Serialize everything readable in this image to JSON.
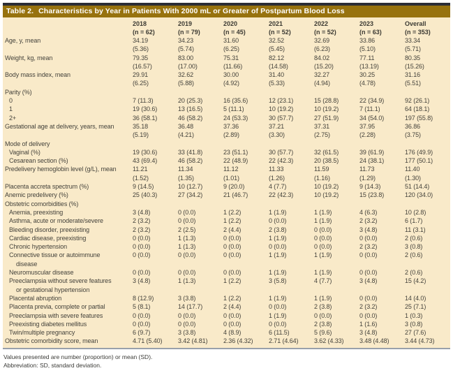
{
  "table": {
    "title_prefix": "Table 2.",
    "title_rest": "Characteristics by Year in Patients With 2000 mL or Greater of Postpartum Blood Loss",
    "columns": [
      {
        "year": "2018",
        "n": "(n = 62)"
      },
      {
        "year": "2019",
        "n": "(n = 79)"
      },
      {
        "year": "2020",
        "n": "(n = 45)"
      },
      {
        "year": "2021",
        "n": "(n = 52)"
      },
      {
        "year": "2022",
        "n": "(n = 52)"
      },
      {
        "year": "2023",
        "n": "(n = 63)"
      },
      {
        "year": "Overall",
        "n": "(n = 353)"
      }
    ],
    "rows": [
      {
        "label": "Age, y, mean",
        "indent": 0,
        "values": [
          [
            "34.19",
            "(5.36)"
          ],
          [
            "34.23",
            "(5.74)"
          ],
          [
            "31.60",
            "(6.25)"
          ],
          [
            "32.52",
            "(5.45)"
          ],
          [
            "32.69",
            "(6.23)"
          ],
          [
            "33.86",
            "(5.10)"
          ],
          [
            "33.34",
            "(5.71)"
          ]
        ]
      },
      {
        "label": "Weight, kg, mean",
        "indent": 0,
        "values": [
          [
            "79.35",
            "(16.57)"
          ],
          [
            "83.00",
            "(17.00)"
          ],
          [
            "75.31",
            "(11.66)"
          ],
          [
            "82.12",
            "(14.58)"
          ],
          [
            "84.02",
            "(15.20)"
          ],
          [
            "77.11",
            "(13.19)"
          ],
          [
            "80.35",
            "(15.26)"
          ]
        ]
      },
      {
        "label": "Body mass index, mean",
        "indent": 0,
        "values": [
          [
            "29.91",
            "(6.25)"
          ],
          [
            "32.62",
            "(5.88)"
          ],
          [
            "30.00",
            "(4.92)"
          ],
          [
            "31.40",
            "(5.33)"
          ],
          [
            "32.27",
            "(4.94)"
          ],
          [
            "30.25",
            "(4.78)"
          ],
          [
            "31.16",
            "(5.51)"
          ]
        ]
      },
      {
        "label": "Parity (%)",
        "indent": 0,
        "values": []
      },
      {
        "label": "0",
        "indent": 1,
        "values": [
          "7 (11.3)",
          "20 (25.3)",
          "16 (35.6)",
          "12 (23.1)",
          "15 (28.8)",
          "22 (34.9)",
          "92 (26.1)"
        ]
      },
      {
        "label": "1",
        "indent": 1,
        "values": [
          "19 (30.6)",
          "13 (16.5)",
          "5 (11.1)",
          "10 (19.2)",
          "10 (19.2)",
          "7 (11.1)",
          "64 (18.1)"
        ]
      },
      {
        "label": "2+",
        "indent": 1,
        "values": [
          "36 (58.1)",
          "46 (58.2)",
          "24 (53.3)",
          "30 (57.7)",
          "27 (51.9)",
          "34 (54.0)",
          "197 (55.8)"
        ]
      },
      {
        "label": "Gestational age at delivery, years, mean",
        "indent": 0,
        "values": [
          [
            "35.18",
            "(5.19)"
          ],
          [
            "36.48",
            "(4.21)"
          ],
          [
            "37.36",
            "(2.89)"
          ],
          [
            "37.21",
            "(3.30)"
          ],
          [
            "37.31",
            "(2.75)"
          ],
          [
            "37.95",
            "(2.28)"
          ],
          [
            "36.86",
            "(3.75)"
          ]
        ]
      },
      {
        "label": "Mode of delivery",
        "indent": 0,
        "values": []
      },
      {
        "label": "Vaginal (%)",
        "indent": 1,
        "values": [
          "19 (30.6)",
          "33 (41.8)",
          "23 (51.1)",
          "30 (57.7)",
          "32 (61.5)",
          "39 (61.9)",
          "176 (49.9)"
        ]
      },
      {
        "label": "Cesarean section (%)",
        "indent": 1,
        "values": [
          "43 (69.4)",
          "46 (58.2)",
          "22 (48.9)",
          "22 (42.3)",
          "20 (38.5)",
          "24 (38.1)",
          "177 (50.1)"
        ]
      },
      {
        "label": "Predelivery hemoglobin level (g/L), mean",
        "indent": 0,
        "values": [
          [
            "11.21",
            "(1.52)"
          ],
          [
            "11.34",
            "(1.35)"
          ],
          [
            "11.12",
            "(1.01)"
          ],
          [
            "11.33",
            "(1.26)"
          ],
          [
            "11.59",
            "(1.16)"
          ],
          [
            "11.73",
            "(1.29)"
          ],
          [
            "11.40",
            "(1.30)"
          ]
        ]
      },
      {
        "label": "Placenta accreta spectrum (%)",
        "indent": 0,
        "values": [
          "9 (14.5)",
          "10 (12.7)",
          "9 (20.0)",
          "4 (7.7)",
          "10 (19.2)",
          "9 (14.3)",
          "51 (14.4)"
        ]
      },
      {
        "label": "Anemic predelivery (%)",
        "indent": 0,
        "values": [
          "25 (40.3)",
          "27 (34.2)",
          "21 (46.7)",
          "22 (42.3)",
          "10 (19.2)",
          "15 (23.8)",
          "120 (34.0)"
        ]
      },
      {
        "label": "Obstetric comorbidities (%)",
        "indent": 0,
        "values": []
      },
      {
        "label": "Anemia, preexisting",
        "indent": 1,
        "values": [
          "3 (4.8)",
          "0 (0.0)",
          "1 (2.2)",
          "1 (1.9)",
          "1 (1.9)",
          "4 (6.3)",
          "10 (2.8)"
        ]
      },
      {
        "label": "Asthma, acute or moderate/severe",
        "indent": 1,
        "values": [
          "2 (3.2)",
          "0 (0.0)",
          "1 (2.2)",
          "0 (0.0)",
          "1 (1.9)",
          "2 (3.2)",
          "6 (1.7)"
        ]
      },
      {
        "label": "Bleeding disorder, preexisting",
        "indent": 1,
        "values": [
          "2 (3.2)",
          "2 (2.5)",
          "2 (4.4)",
          "2 (3.8)",
          "0 (0.0)",
          "3 (4.8)",
          "11 (3.1)"
        ]
      },
      {
        "label": "Cardiac disease, preexisting",
        "indent": 1,
        "values": [
          "0 (0.0)",
          "1 (1.3)",
          "0 (0.0)",
          "1 (1.9)",
          "0 (0.0)",
          "0 (0.0)",
          "2 (0.6)"
        ]
      },
      {
        "label": "Chronic hypertension",
        "indent": 1,
        "values": [
          "0 (0.0)",
          "1 (1.3)",
          "0 (0.0)",
          "0 (0.0)",
          "0 (0.0)",
          "2 (3.2)",
          "3 (0.8)"
        ]
      },
      {
        "label": "Connective tissue or autoimmune",
        "label2": "disease",
        "indent": 1,
        "values": [
          "0 (0.0)",
          "0 (0.0)",
          "0 (0.0)",
          "1 (1.9)",
          "1 (1.9)",
          "0 (0.0)",
          "2 (0.6)"
        ]
      },
      {
        "label": "Neuromuscular disease",
        "indent": 1,
        "values": [
          "0 (0.0)",
          "0 (0.0)",
          "0 (0.0)",
          "1 (1.9)",
          "1 (1.9)",
          "0 (0.0)",
          "2 (0.6)"
        ]
      },
      {
        "label": "Preeclampsia without severe features",
        "label2": "or gestational hypertension",
        "indent": 1,
        "values": [
          "3 (4.8)",
          "1 (1.3)",
          "1 (2.2)",
          "3 (5.8)",
          "4 (7.7)",
          "3 (4.8)",
          "15 (4.2)"
        ]
      },
      {
        "label": "Placental abruption",
        "indent": 1,
        "values": [
          "8 (12.9)",
          "3 (3.8)",
          "1 (2.2)",
          "1 (1.9)",
          "1 (1.9)",
          "0 (0.0)",
          "14 (4.0)"
        ]
      },
      {
        "label": "Placenta previa, complete or partial",
        "indent": 1,
        "values": [
          "5 (8.1)",
          "14 (17.7)",
          "2 (4.4)",
          "0 (0.0)",
          "2 (3.8)",
          "2 (3.2)",
          "25 (7.1)"
        ]
      },
      {
        "label": "Preeclampsia with severe features",
        "indent": 1,
        "values": [
          "0 (0.0)",
          "0 (0.0)",
          "0 (0.0)",
          "1 (1.9)",
          "0 (0.0)",
          "0 (0.0)",
          "1 (0.3)"
        ]
      },
      {
        "label": "Preexisting diabetes mellitus",
        "indent": 1,
        "values": [
          "0 (0.0)",
          "0 (0.0)",
          "0 (0.0)",
          "0 (0.0)",
          "2 (3.8)",
          "1 (1.6)",
          "3 (0.8)"
        ]
      },
      {
        "label": "Twin/multiple pregnancy",
        "indent": 1,
        "values": [
          "6 (9.7)",
          "3 (3.8)",
          "4 (8.9)",
          "6 (11.5)",
          "5 (9.6)",
          "3 (4.8)",
          "27 (7.6)"
        ]
      },
      {
        "label": "Obstetric comorbidity score, mean",
        "indent": 0,
        "values": [
          "4.71 (5.40)",
          "3.42 (4.81)",
          "2.36 (4.32)",
          "2.71 (4.64)",
          "3.62 (4.33)",
          "3.48 (4.48)",
          "3.44 (4.73)"
        ]
      }
    ],
    "footnotes": [
      "Values presented are number (proportion) or mean (SD).",
      "Abbreviation: SD, standard deviation."
    ],
    "colors": {
      "title_bar": "#97720e",
      "top_strip": "#2b2d36",
      "body_background": "#f9eac9",
      "text": "#45433c",
      "bottom_border": "#99a0aa"
    }
  }
}
